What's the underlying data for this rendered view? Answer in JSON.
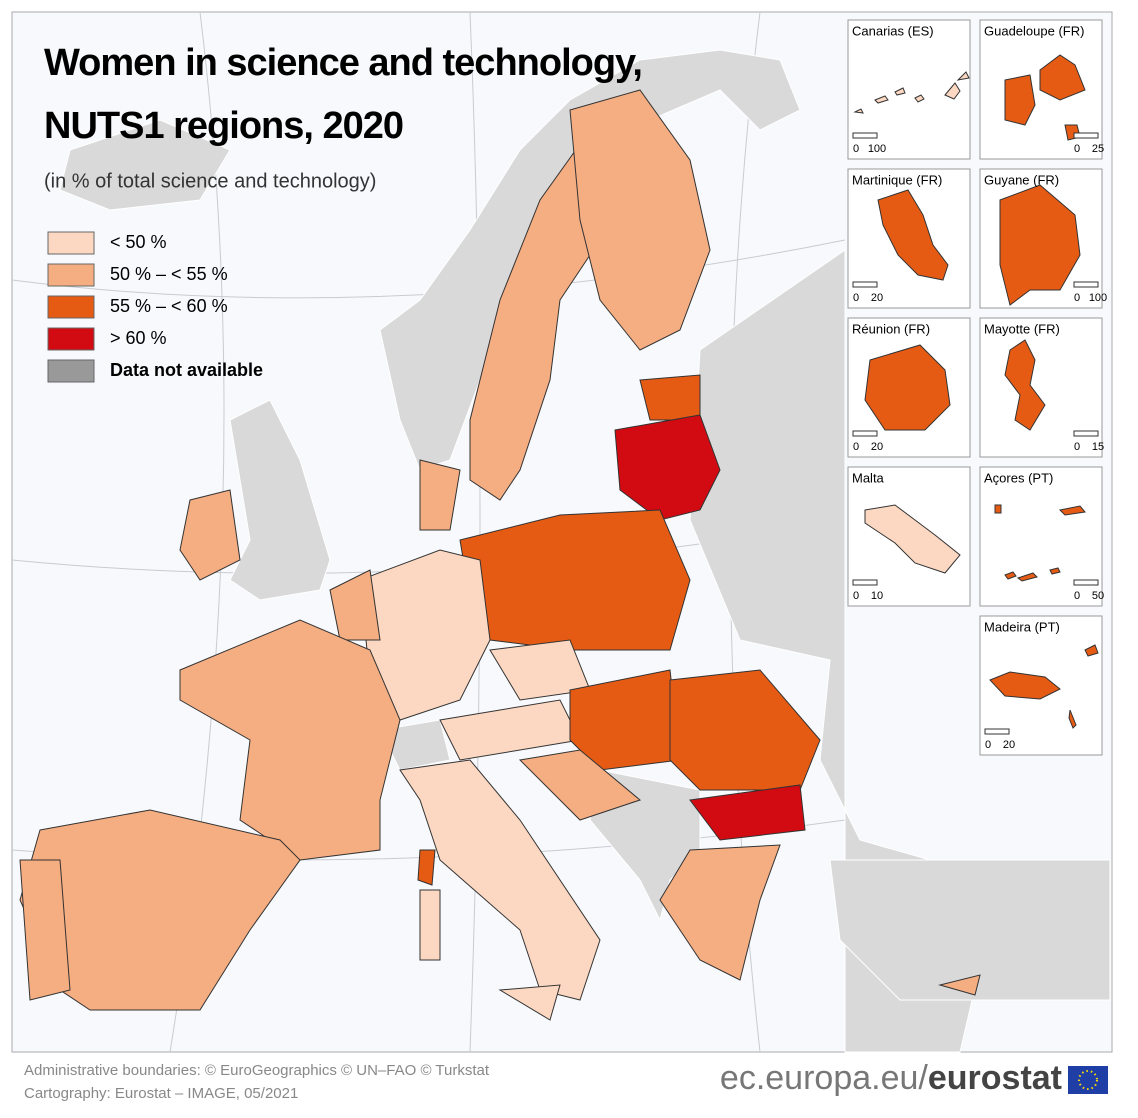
{
  "header": {
    "title_lines": [
      "Women in science and technology,",
      "NUTS1 regions, 2020"
    ],
    "subtitle": "(in % of total science and technology)"
  },
  "legend": [
    {
      "label": "< 50 %",
      "color": "#fcd8c2"
    },
    {
      "label": "50 % – < 55 %",
      "color": "#f5ad82"
    },
    {
      "label": "55 % – < 60 %",
      "color": "#e55b14"
    },
    {
      "label": "> 60 %",
      "color": "#d20a11"
    },
    {
      "label": "Data not available",
      "color": "#999999"
    }
  ],
  "insets": [
    {
      "name": "Canarias (ES)",
      "scale": [
        0,
        100
      ]
    },
    {
      "name": "Guadeloupe (FR)",
      "scale": [
        0,
        25
      ]
    },
    {
      "name": "Martinique (FR)",
      "scale": [
        0,
        20
      ]
    },
    {
      "name": "Guyane (FR)",
      "scale": [
        0,
        100
      ]
    },
    {
      "name": "Réunion (FR)",
      "scale": [
        0,
        20
      ]
    },
    {
      "name": "Mayotte (FR)",
      "scale": [
        0,
        15
      ]
    },
    {
      "name": "Malta",
      "scale": [
        0,
        10
      ]
    },
    {
      "name": "Açores (PT)",
      "scale": [
        0,
        50
      ]
    },
    {
      "name": "Madeira (PT)",
      "scale": [
        0,
        20
      ]
    }
  ],
  "footer": {
    "credits": [
      "Administrative boundaries: © EuroGeographics © UN–FAO © Turkstat",
      "Cartography: Eurostat – IMAGE, 05/2021"
    ],
    "site": "ec.europa.eu/",
    "brand": "eurostat"
  }
}
